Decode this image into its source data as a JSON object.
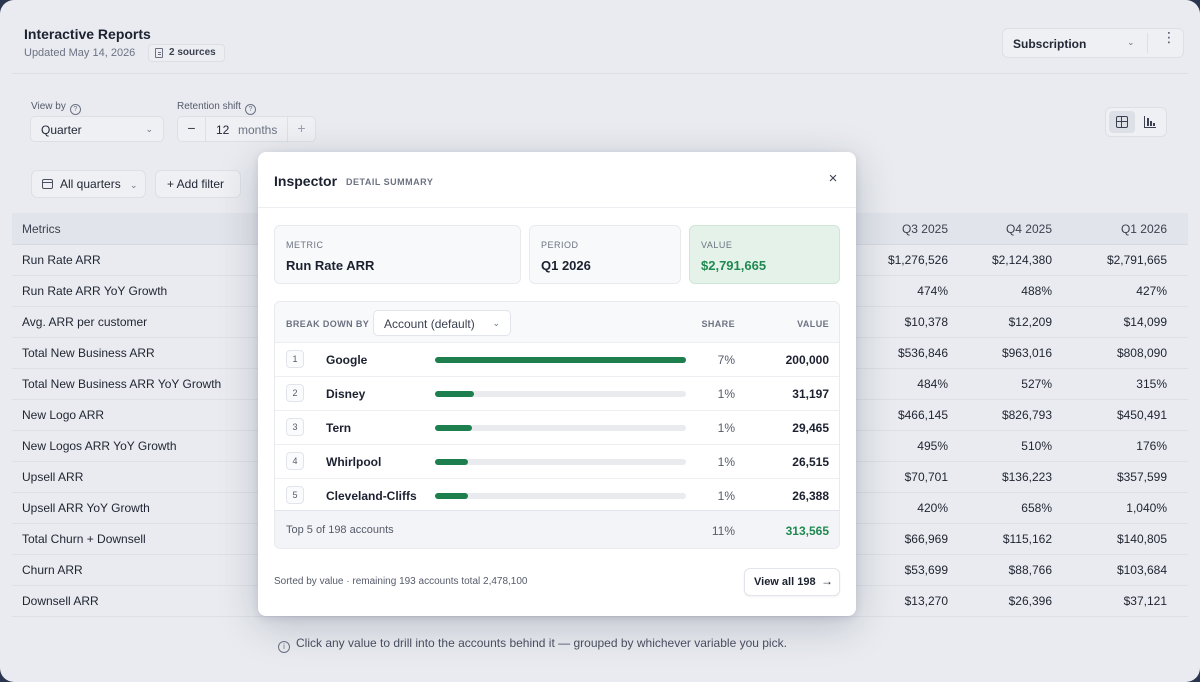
{
  "header": {
    "title": "Interactive Reports",
    "updated": "Updated May 14, 2026",
    "sources_label": "2 sources",
    "report_type": "Subscription",
    "more_label": "⋮"
  },
  "controls": {
    "view_by_label": "View by",
    "view_by_value": "Quarter",
    "retention_label": "Retention shift",
    "retention_value": "12",
    "retention_unit": "months",
    "minus_label": "−",
    "plus_label": "+",
    "quarters_chip": "All quarters",
    "add_filter": "+ Add filter"
  },
  "table": {
    "metrics_header": "Metrics",
    "columns": [
      "Q3 2025",
      "Q4 2025",
      "Q1 2026"
    ],
    "rows": [
      {
        "metric": "Run Rate ARR",
        "values": [
          "$1,276,526",
          "$2,124,380",
          "$2,791,665"
        ]
      },
      {
        "metric": "Run Rate ARR YoY Growth",
        "values": [
          "474%",
          "488%",
          "427%"
        ]
      },
      {
        "metric": "Avg. ARR per customer",
        "values": [
          "$10,378",
          "$12,209",
          "$14,099"
        ]
      },
      {
        "metric": "Total New Business ARR",
        "values": [
          "$536,846",
          "$963,016",
          "$808,090"
        ]
      },
      {
        "metric": "Total New Business ARR YoY Growth",
        "values": [
          "484%",
          "527%",
          "315%"
        ]
      },
      {
        "metric": "New Logo ARR",
        "values": [
          "$466,145",
          "$826,793",
          "$450,491"
        ]
      },
      {
        "metric": "New Logos ARR YoY Growth",
        "values": [
          "495%",
          "510%",
          "176%"
        ]
      },
      {
        "metric": "Upsell ARR",
        "values": [
          "$70,701",
          "$136,223",
          "$357,599"
        ]
      },
      {
        "metric": "Upsell ARR YoY Growth",
        "values": [
          "420%",
          "658%",
          "1,040%"
        ]
      },
      {
        "metric": "Total Churn + Downsell",
        "values": [
          "$66,969",
          "$115,162",
          "$140,805"
        ]
      },
      {
        "metric": "Churn ARR",
        "values": [
          "$53,699",
          "$88,766",
          "$103,684"
        ]
      },
      {
        "metric": "Downsell ARR",
        "values": [
          "$13,270",
          "$26,396",
          "$37,121"
        ]
      }
    ]
  },
  "hint": "Click any value to drill into the accounts behind it — grouped by whichever variable you pick.",
  "inspector": {
    "title": "Inspector",
    "subtitle": "DETAIL SUMMARY",
    "close_label": "×",
    "metric_label": "METRIC",
    "metric_value": "Run Rate ARR",
    "period_label": "PERIOD",
    "period_value": "Q1 2026",
    "value_label": "VALUE",
    "value_value": "$2,791,665",
    "breakdown_label": "BREAK DOWN BY",
    "breakdown_value": "Account (default)",
    "share_header": "SHARE",
    "value_header": "VALUE",
    "accounts": [
      {
        "rank": "1",
        "name": "Google",
        "share": "7%",
        "value": "200,000",
        "bar": 1.0
      },
      {
        "rank": "2",
        "name": "Disney",
        "share": "1%",
        "value": "31,197",
        "bar": 0.156
      },
      {
        "rank": "3",
        "name": "Tern",
        "share": "1%",
        "value": "29,465",
        "bar": 0.147
      },
      {
        "rank": "4",
        "name": "Whirlpool",
        "share": "1%",
        "value": "26,515",
        "bar": 0.133
      },
      {
        "rank": "5",
        "name": "Cleveland-Cliffs",
        "share": "1%",
        "value": "26,388",
        "bar": 0.132
      }
    ],
    "footer_label": "Top 5 of 198 accounts",
    "footer_share": "11%",
    "footer_value": "313,565",
    "sorted_note": "Sorted by value · remaining 193 accounts total 2,478,100",
    "view_all_label": "View all 198",
    "view_all_arrow": "→"
  },
  "colors": {
    "accent_green": "#1d7f4d",
    "value_green": "#1f8a50"
  }
}
